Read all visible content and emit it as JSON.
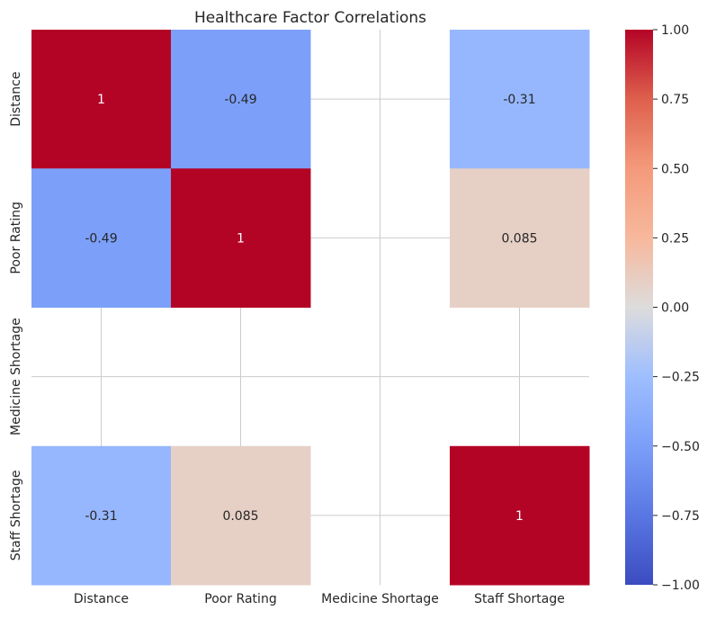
{
  "chart_data": {
    "type": "heatmap",
    "title": "Healthcare Factor Correlations",
    "xlabel": "",
    "ylabel": "",
    "categories": [
      "Distance",
      "Poor Rating",
      "Medicine Shortage",
      "Staff Shortage"
    ],
    "values": [
      [
        1,
        -0.49,
        null,
        -0.31
      ],
      [
        -0.49,
        1,
        null,
        0.085
      ],
      [
        null,
        null,
        null,
        null
      ],
      [
        -0.31,
        0.085,
        null,
        1
      ]
    ],
    "annotations": [
      [
        "1",
        "-0.49",
        "",
        "-0.31"
      ],
      [
        "-0.49",
        "1",
        "",
        "0.085"
      ],
      [
        "",
        "",
        "",
        ""
      ],
      [
        "-0.31",
        "0.085",
        "",
        "1"
      ]
    ],
    "colormap": "coolwarm",
    "vmin": -1.0,
    "vmax": 1.0,
    "colorbar_ticks": [
      "1.00",
      "0.75",
      "0.50",
      "0.25",
      "0.00",
      "−0.25",
      "−0.50",
      "−0.75",
      "−1.00"
    ],
    "grid": true,
    "colors": {
      "grid": "#cccccc",
      "text": "#262626",
      "background": "#ffffff"
    }
  }
}
